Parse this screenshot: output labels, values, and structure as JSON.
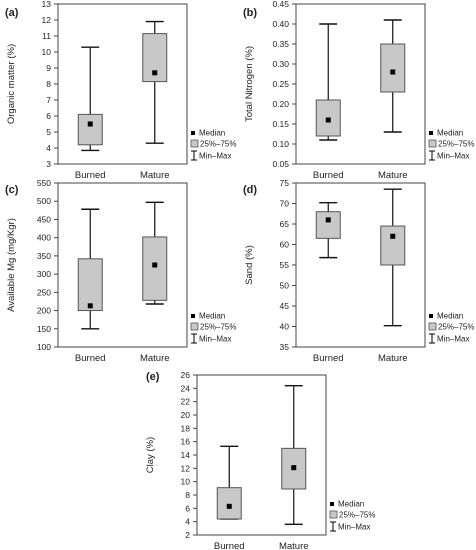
{
  "legend": {
    "median": "Median",
    "iqr": "25%–75%",
    "range": "Min–Max"
  },
  "colors": {
    "box_fill": "#c8c8c8",
    "box_stroke": "#555555",
    "axis": "#444444",
    "text": "#222222"
  },
  "chart_data": [
    {
      "panel_label": "(a)",
      "type": "box",
      "categories": [
        "Burned",
        "Mature"
      ],
      "ylabel": "Organic matter (%)",
      "ylim": [
        3,
        13
      ],
      "yticks": [
        "3",
        "4",
        "5",
        "6",
        "7",
        "8",
        "9",
        "10",
        "11",
        "12",
        "13"
      ],
      "boxes": [
        {
          "category": "Burned",
          "min": 3.85,
          "q1": 4.2,
          "median": 5.5,
          "q3": 6.1,
          "max": 10.3
        },
        {
          "category": "Mature",
          "min": 4.3,
          "q1": 8.15,
          "median": 8.7,
          "q3": 11.15,
          "max": 11.9
        }
      ]
    },
    {
      "panel_label": "(b)",
      "type": "box",
      "categories": [
        "Burned",
        "Mature"
      ],
      "ylabel": "Total Nitrogen (%)",
      "ylim": [
        0.05,
        0.45
      ],
      "yticks": [
        "0.05",
        "0.10",
        "0.15",
        "0.20",
        "0.25",
        "0.30",
        "0.35",
        "0.40",
        "0.45"
      ],
      "boxes": [
        {
          "category": "Burned",
          "min": 0.11,
          "q1": 0.12,
          "median": 0.16,
          "q3": 0.21,
          "max": 0.4
        },
        {
          "category": "Mature",
          "min": 0.13,
          "q1": 0.23,
          "median": 0.28,
          "q3": 0.35,
          "max": 0.41
        }
      ]
    },
    {
      "panel_label": "(c)",
      "type": "box",
      "categories": [
        "Burned",
        "Mature"
      ],
      "ylabel": "Available Mg (mg/Kgr)",
      "ylim": [
        100,
        550
      ],
      "yticks": [
        "100",
        "150",
        "200",
        "250",
        "300",
        "350",
        "400",
        "450",
        "500",
        "550"
      ],
      "boxes": [
        {
          "category": "Burned",
          "min": 150,
          "q1": 200,
          "median": 213,
          "q3": 342,
          "max": 478
        },
        {
          "category": "Mature",
          "min": 218,
          "q1": 228,
          "median": 325,
          "q3": 402,
          "max": 497
        }
      ]
    },
    {
      "panel_label": "(d)",
      "type": "box",
      "categories": [
        "Burned",
        "Mature"
      ],
      "ylabel": "Sand (%)",
      "ylim": [
        35,
        75
      ],
      "yticks": [
        "35",
        "40",
        "45",
        "50",
        "55",
        "60",
        "65",
        "70",
        "75"
      ],
      "boxes": [
        {
          "category": "Burned",
          "min": 56.8,
          "q1": 61.5,
          "median": 66.0,
          "q3": 68.0,
          "max": 70.2
        },
        {
          "category": "Mature",
          "min": 40.2,
          "q1": 55.0,
          "median": 62.0,
          "q3": 64.5,
          "max": 73.5
        }
      ]
    },
    {
      "panel_label": "(e)",
      "type": "box",
      "categories": [
        "Burned",
        "Mature"
      ],
      "ylabel": "Clay (%)",
      "ylim": [
        2,
        26
      ],
      "yticks": [
        "2",
        "4",
        "6",
        "8",
        "10",
        "12",
        "14",
        "16",
        "18",
        "20",
        "22",
        "24",
        "26"
      ],
      "boxes": [
        {
          "category": "Burned",
          "min": 4.4,
          "q1": 4.4,
          "median": 6.3,
          "q3": 9.1,
          "max": 15.3
        },
        {
          "category": "Mature",
          "min": 3.6,
          "q1": 8.9,
          "median": 12.1,
          "q3": 15.0,
          "max": 24.4
        }
      ]
    }
  ]
}
